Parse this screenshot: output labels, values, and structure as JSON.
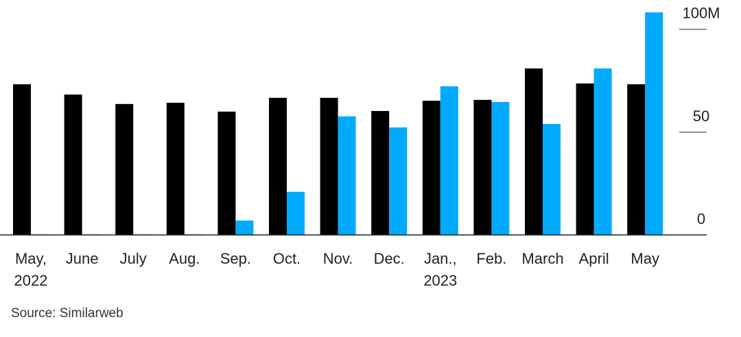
{
  "chart_data": {
    "type": "bar",
    "categories": [
      "May,\n2022",
      "June",
      "July",
      "Aug.",
      "Sep.",
      "Oct.",
      "Nov.",
      "Dec.",
      "Jan.,\n2023",
      "Feb.",
      "March",
      "April",
      "May"
    ],
    "series": [
      {
        "color": "#000000",
        "values": [
          73.3,
          68.3,
          63.7,
          64.3,
          60,
          66.7,
          66.7,
          60.3,
          65.3,
          65.7,
          81,
          73.7,
          73.3
        ]
      },
      {
        "color": "#00aaff",
        "values": [
          0.3,
          0.3,
          0.3,
          0.3,
          7,
          21,
          57.7,
          52.3,
          72.3,
          64.7,
          54,
          81,
          108.3
        ]
      }
    ],
    "ylim": [
      0,
      108.3
    ],
    "yticks": [
      0,
      50,
      {
        "value": 100,
        "label": "100M"
      }
    ],
    "source": "Source: Similarweb"
  }
}
